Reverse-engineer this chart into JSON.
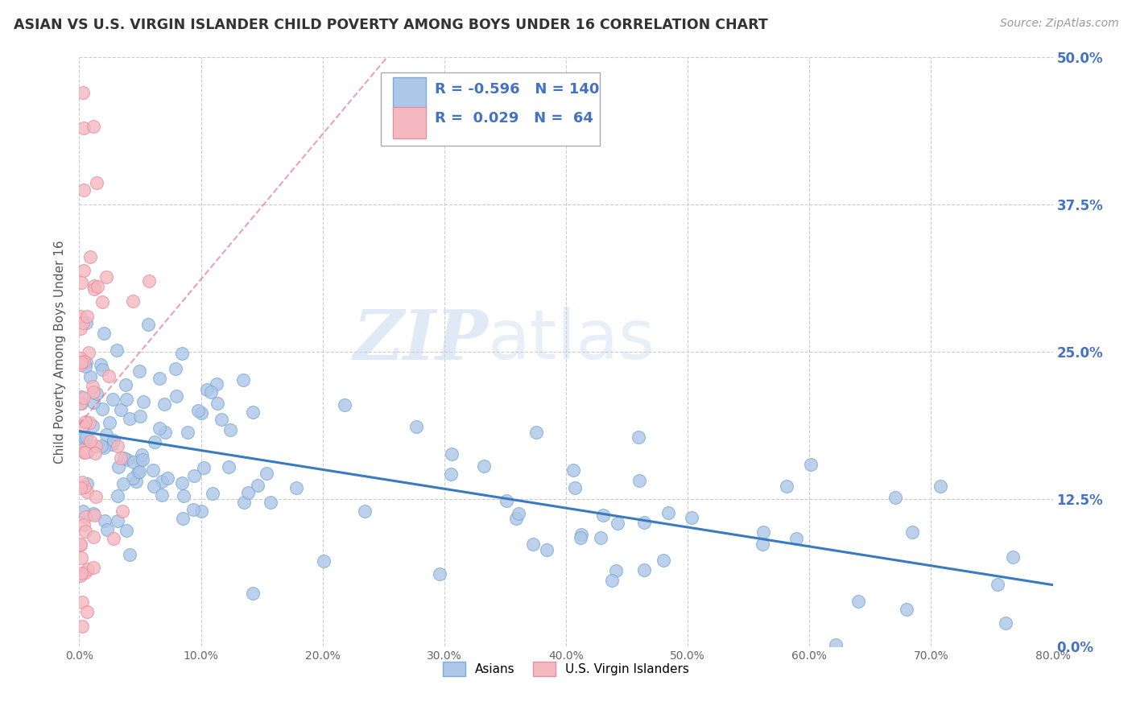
{
  "title": "ASIAN VS U.S. VIRGIN ISLANDER CHILD POVERTY AMONG BOYS UNDER 16 CORRELATION CHART",
  "source": "Source: ZipAtlas.com",
  "ylabel": "Child Poverty Among Boys Under 16",
  "xlim": [
    0,
    0.8
  ],
  "ylim": [
    0,
    0.5
  ],
  "xticks": [
    0.0,
    0.1,
    0.2,
    0.3,
    0.4,
    0.5,
    0.6,
    0.7,
    0.8
  ],
  "xticklabels": [
    "0.0%",
    "10.0%",
    "20.0%",
    "30.0%",
    "40.0%",
    "50.0%",
    "60.0%",
    "70.0%",
    "80.0%"
  ],
  "yticks": [
    0.0,
    0.125,
    0.25,
    0.375,
    0.5
  ],
  "right_yticklabels": [
    "0.0%",
    "12.5%",
    "25.0%",
    "37.5%",
    "50.0%"
  ],
  "asian_color": "#aec6e8",
  "asian_edge_color": "#7aadd4",
  "vi_color": "#f4b8c1",
  "vi_edge_color": "#e8909e",
  "trend_asian_color": "#3a7bbf",
  "trend_vi_color": "#e07090",
  "watermark_zip": "ZIP",
  "watermark_atlas": "atlas",
  "legend_R_asian": "-0.596",
  "legend_N_asian": "140",
  "legend_R_vi": "0.029",
  "legend_N_vi": "64",
  "background_color": "#ffffff",
  "grid_color": "#cccccc",
  "title_color": "#333333",
  "right_axis_color": "#4472c4",
  "seed": 12345
}
